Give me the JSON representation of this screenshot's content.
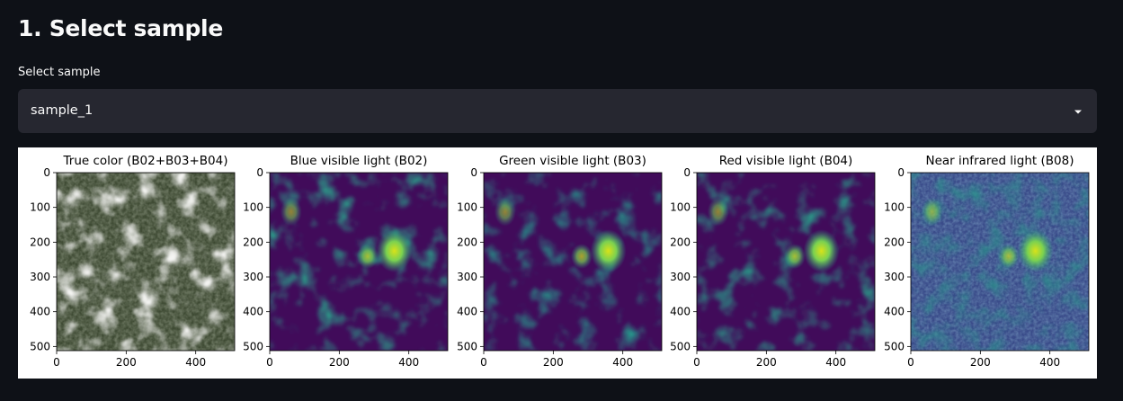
{
  "header": {
    "title": "1. Select sample"
  },
  "sample_select": {
    "label": "Select sample",
    "value": "sample_1",
    "caret_icon": "chevron-down-icon"
  },
  "figure": {
    "panels": [
      {
        "title": "True color (B02+B03+B04)",
        "colormap": "rgb"
      },
      {
        "title": "Blue visible light (B02)",
        "colormap": "viridis"
      },
      {
        "title": "Green visible light (B03)",
        "colormap": "viridis"
      },
      {
        "title": "Red visible light (B04)",
        "colormap": "viridis"
      },
      {
        "title": "Near infrared light (B08)",
        "colormap": "viridis"
      }
    ],
    "x_ticks": [
      "0",
      "200",
      "400"
    ],
    "y_ticks": [
      "0",
      "100",
      "200",
      "300",
      "400",
      "500"
    ]
  },
  "colors": {
    "background": "#0e1117",
    "select_bg": "#262730",
    "text": "#fafafa",
    "viridis_dark": "#440154",
    "viridis_mid": "#21918c",
    "viridis_light": "#fde725"
  }
}
